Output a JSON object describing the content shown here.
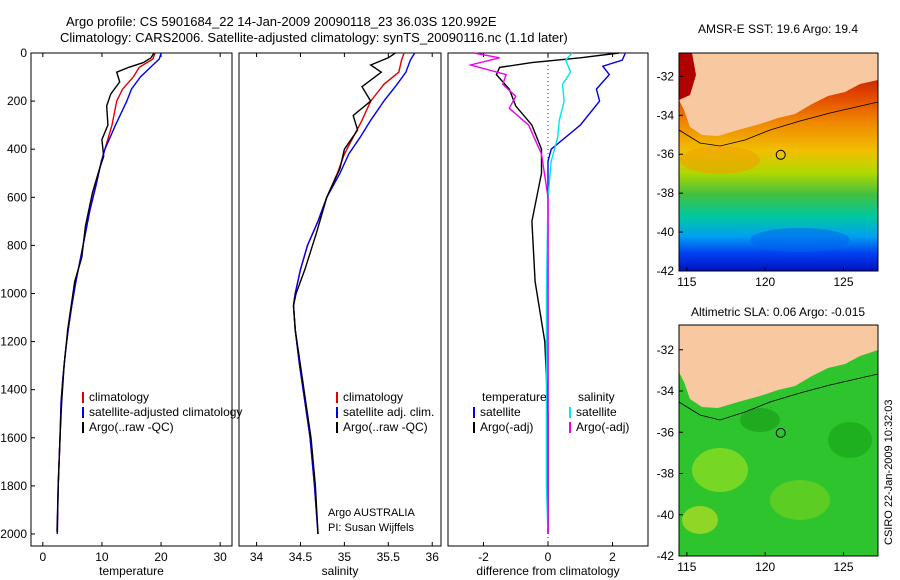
{
  "header": {
    "line1": "Argo profile: CS 5901684_22 14-Jan-2009 20090118_23 36.03S 120.992E",
    "line2": "Climatology: CARS2006. Satellite-adjusted climatology: synTS_20090116.nc (1.1d later)"
  },
  "credit": {
    "line1": "Argo AUSTRALIA",
    "line2": "PI: Susan Wijffels"
  },
  "stamp": "CSIRO 22-Jan-2009 10:32:03",
  "colors": {
    "climatology": "#e00000",
    "satellite": "#0000ee",
    "argo": "#000000",
    "salinity_sat": "#00e5ee",
    "salinity_argo": "#ee00ee",
    "land": "#f8c8a0"
  },
  "chart_data": [
    {
      "type": "line",
      "xlabel": "temperature",
      "xlim": [
        -2,
        32
      ],
      "ylim": [
        2050,
        0
      ],
      "xticks": [
        0,
        10,
        20,
        30
      ],
      "yticks": [
        0,
        200,
        400,
        600,
        800,
        1000,
        1200,
        1400,
        1600,
        1800,
        2000
      ],
      "legend": {
        "placement": "lower-middle",
        "entries": [
          "climatology",
          "satellite-adjusted climatology",
          "Argo(..raw -QC)"
        ]
      },
      "series": [
        {
          "name": "climatology",
          "color": "#e00000",
          "x": [
            19.0,
            18.6,
            16.3,
            15.3,
            13.5,
            12.5,
            11.7,
            10.5,
            9.9,
            9.0,
            8.0,
            7.2,
            6.4,
            5.6,
            4.9,
            4.3,
            3.8,
            3.4,
            3.1,
            2.9,
            2.6,
            2.45
          ],
          "y": [
            0,
            25,
            60,
            100,
            150,
            200,
            300,
            400,
            450,
            550,
            650,
            750,
            850,
            950,
            1050,
            1150,
            1250,
            1350,
            1450,
            1600,
            1800,
            2000
          ]
        },
        {
          "name": "satellite-adjusted climatology",
          "color": "#0000ee",
          "x": [
            20.0,
            19.7,
            18.2,
            16.5,
            15.0,
            14.2,
            12.3,
            10.5,
            9.9,
            9.0,
            8.0,
            7.2,
            6.4,
            5.6,
            4.9,
            4.3,
            3.8,
            3.4,
            3.1,
            2.9,
            2.6,
            2.45
          ],
          "y": [
            0,
            25,
            60,
            100,
            150,
            200,
            300,
            400,
            450,
            550,
            650,
            750,
            850,
            950,
            1050,
            1150,
            1250,
            1350,
            1450,
            1600,
            1800,
            2000
          ]
        },
        {
          "name": "Argo(..raw -QC)",
          "color": "#000000",
          "x": [
            18.8,
            18.3,
            17.0,
            14.5,
            12.5,
            13.0,
            11.5,
            10.8,
            11.0,
            10.0,
            10.3,
            9.6,
            8.4,
            7.2,
            6.6,
            5.4,
            4.8,
            4.2,
            3.6,
            3.2,
            2.9,
            2.6,
            2.4
          ],
          "y": [
            0,
            20,
            40,
            60,
            80,
            120,
            170,
            220,
            300,
            360,
            430,
            480,
            580,
            720,
            850,
            950,
            1050,
            1150,
            1300,
            1450,
            1600,
            1800,
            1990
          ]
        }
      ]
    },
    {
      "type": "line",
      "xlabel": "salinity",
      "xlim": [
        33.8,
        36.1
      ],
      "ylim": [
        2050,
        0
      ],
      "xticks": [
        34,
        34.5,
        35,
        35.5,
        36
      ],
      "legend": {
        "placement": "lower-middle",
        "entries": [
          "climatology",
          "satellite adj. clim.",
          "Argo(..raw -QC)"
        ]
      },
      "series": [
        {
          "name": "climatology",
          "color": "#e00000",
          "x": [
            35.68,
            35.65,
            35.62,
            35.45,
            35.3,
            35.2,
            35.1,
            35.0,
            34.92,
            34.8,
            34.7,
            34.58,
            34.5,
            34.44,
            34.42,
            34.44,
            34.49,
            34.55,
            34.61,
            34.66,
            34.7
          ],
          "y": [
            0,
            30,
            80,
            130,
            200,
            280,
            350,
            420,
            500,
            600,
            700,
            800,
            900,
            1000,
            1050,
            1150,
            1300,
            1450,
            1600,
            1800,
            2000
          ]
        },
        {
          "name": "satellite adj. clim.",
          "color": "#0000ee",
          "x": [
            35.8,
            35.75,
            35.7,
            35.6,
            35.45,
            35.3,
            35.18,
            35.05,
            34.95,
            34.8,
            34.7,
            34.58,
            34.5,
            34.44,
            34.42,
            34.44,
            34.49,
            34.55,
            34.61,
            34.66,
            34.7
          ],
          "y": [
            0,
            30,
            80,
            130,
            200,
            280,
            350,
            420,
            500,
            600,
            700,
            800,
            900,
            1000,
            1050,
            1150,
            1300,
            1450,
            1600,
            1800,
            2000
          ]
        },
        {
          "name": "Argo(..raw -QC)",
          "color": "#000000",
          "x": [
            35.58,
            35.5,
            35.3,
            35.42,
            35.2,
            35.3,
            35.1,
            35.15,
            35.0,
            34.95,
            34.8,
            34.68,
            34.55,
            34.45,
            34.42,
            34.44,
            34.5,
            34.56,
            34.62,
            34.67,
            34.7
          ],
          "y": [
            0,
            20,
            50,
            80,
            140,
            200,
            260,
            320,
            400,
            480,
            600,
            750,
            900,
            1000,
            1050,
            1150,
            1300,
            1450,
            1600,
            1800,
            2000
          ]
        }
      ]
    },
    {
      "type": "line",
      "xlabel": "difference from climatology",
      "xlim": [
        -3.1,
        3.1
      ],
      "ylim": [
        2050,
        0
      ],
      "xticks": [
        -2,
        0,
        2
      ],
      "legend": {
        "placement": "lower-middle",
        "titles": [
          "temperature",
          "salinity"
        ],
        "entries": [
          "satellite",
          "Argo(-adj)",
          "satellite",
          "Argo(-adj)"
        ]
      },
      "series": [
        {
          "name": "satellite",
          "group": "temperature",
          "color": "#0000ee",
          "x": [
            2.4,
            2.3,
            1.7,
            1.9,
            1.5,
            1.6,
            1.0,
            0.1,
            0.0,
            0.0,
            0.0,
            0.0,
            0.0
          ],
          "y": [
            0,
            30,
            55,
            90,
            150,
            200,
            300,
            400,
            450,
            600,
            1000,
            1500,
            2000
          ]
        },
        {
          "name": "Argo(-adj)",
          "group": "temperature",
          "color": "#000000",
          "x": [
            2.2,
            1.0,
            -0.5,
            -1.5,
            -1.6,
            -1.2,
            -1.0,
            -0.5,
            -0.2,
            -0.2,
            -0.5,
            -0.4,
            -0.1,
            0.0,
            0.0
          ],
          "y": [
            0,
            20,
            40,
            60,
            90,
            150,
            220,
            300,
            400,
            500,
            700,
            950,
            1200,
            1500,
            2000
          ]
        },
        {
          "name": "satellite",
          "group": "salinity",
          "color": "#00e5ee",
          "x": [
            0.75,
            0.55,
            0.7,
            0.45,
            0.5,
            0.35,
            0.3,
            0.1,
            0.0,
            -0.05,
            -0.05,
            -0.05,
            0.0
          ],
          "y": [
            0,
            30,
            80,
            130,
            200,
            280,
            350,
            450,
            600,
            1000,
            1500,
            1800,
            2000
          ]
        },
        {
          "name": "Argo(-adj)",
          "group": "salinity",
          "color": "#ee00ee",
          "x": [
            -2.3,
            -1.5,
            -2.4,
            -1.3,
            -1.4,
            -1.0,
            -1.2,
            -0.6,
            -0.2,
            0.0,
            0.0
          ],
          "y": [
            0,
            20,
            50,
            90,
            130,
            180,
            230,
            300,
            420,
            600,
            2000
          ]
        }
      ]
    },
    {
      "type": "heatmap",
      "title": "AMSR-E SST: 19.6 Argo: 19.4",
      "xlim": [
        114.5,
        127.2
      ],
      "ylim": [
        -42,
        -30.8
      ],
      "xticks": [
        115,
        120,
        125
      ],
      "yticks": [
        -32,
        -34,
        -36,
        -38,
        -40,
        -42
      ],
      "marker": {
        "lon": 120.992,
        "lat": -36.03
      }
    },
    {
      "type": "heatmap",
      "title": "Altimetric SLA: 0.06 Argo: -0.015",
      "xlim": [
        114.5,
        127.2
      ],
      "ylim": [
        -42,
        -30.8
      ],
      "xticks": [
        115,
        120,
        125
      ],
      "yticks": [
        -32,
        -34,
        -36,
        -38,
        -40,
        -42
      ],
      "marker": {
        "lon": 120.992,
        "lat": -36.03
      }
    }
  ]
}
